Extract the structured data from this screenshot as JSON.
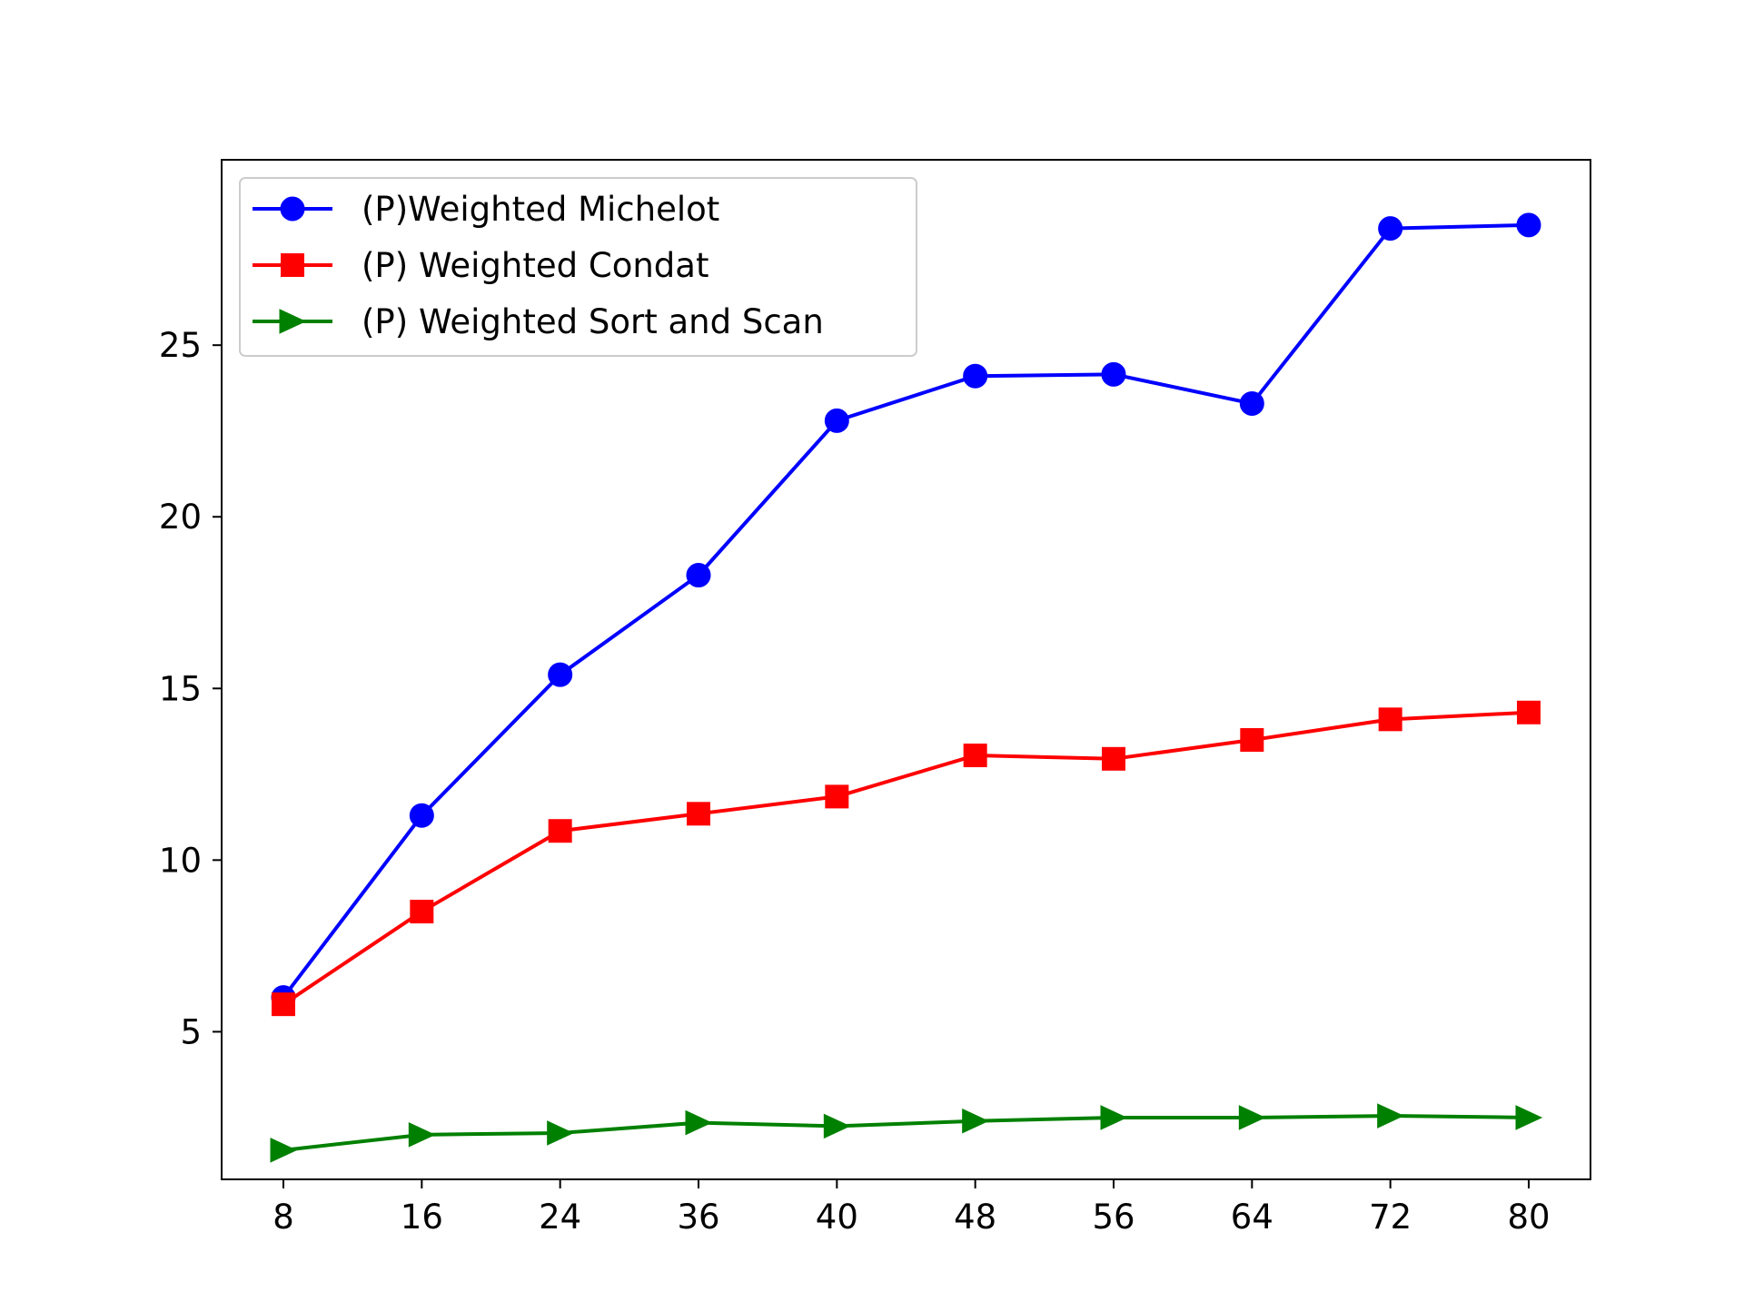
{
  "chart_data": {
    "type": "line",
    "title": "",
    "xlabel": "",
    "ylabel": "",
    "categories": [
      "8",
      "16",
      "24",
      "36",
      "40",
      "48",
      "56",
      "64",
      "72",
      "80"
    ],
    "y_ticks": [
      5,
      10,
      15,
      20,
      25
    ],
    "ylim": [
      0.7,
      30.4
    ],
    "grid": false,
    "legend_position": "upper-left",
    "series": [
      {
        "name": "(P)Weighted Michelot",
        "color": "#0000ff",
        "marker": "circle",
        "values": [
          6.0,
          11.3,
          15.4,
          18.3,
          22.8,
          24.1,
          24.15,
          23.3,
          28.4,
          28.5
        ]
      },
      {
        "name": "(P) Weighted Condat",
        "color": "#ff0000",
        "marker": "square",
        "values": [
          5.8,
          8.5,
          10.85,
          11.35,
          11.85,
          13.05,
          12.95,
          13.5,
          14.1,
          14.3
        ]
      },
      {
        "name": "(P) Weighted Sort and Scan",
        "color": "#008000",
        "marker": "triangle-right",
        "values": [
          1.55,
          2.0,
          2.05,
          2.35,
          2.25,
          2.4,
          2.5,
          2.5,
          2.55,
          2.5
        ]
      }
    ]
  }
}
